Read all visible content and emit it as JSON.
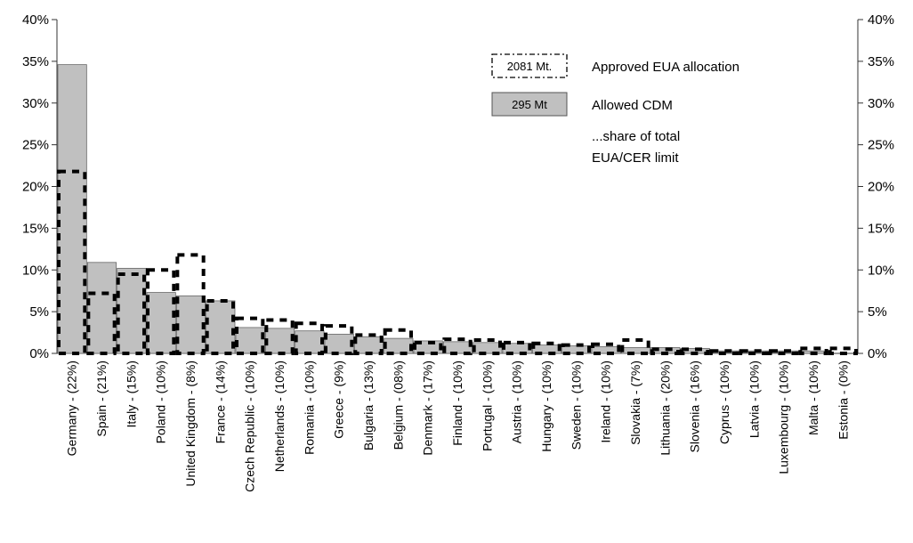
{
  "chart_data": {
    "type": "bar",
    "categories": [
      "Germany - (22%)",
      "Spain - (21%)",
      "Italy - (15%)",
      "Poland - (10%)",
      "United Kingdom - (8%)",
      "France - (14%)",
      "Czech Republic - (10%)",
      "Netherlands - (10%)",
      "Romania - (10%)",
      "Greece - (9%)",
      "Bulgaria - (13%)",
      "Belgium - (08%)",
      "Denmark - (17%)",
      "Finland - (10%)",
      "Portugal - (10%)",
      "Austria - (10%)",
      "Hungary - (10%)",
      "Sweden - (10%)",
      "Ireland - (10%)",
      "Slovakia - (7%)",
      "Lithuania - (20%)",
      "Slovenia - (16%)",
      "Cyprus - (10%)",
      "Latvia - (10%)",
      "Luxembourg - (10%)",
      "Malta - (10%)",
      "Estonia - (0%)"
    ],
    "series": [
      {
        "name": "Allowed CDM",
        "style": "filled",
        "color": "#c0c0c0",
        "values": [
          34.6,
          10.9,
          10.2,
          7.3,
          6.9,
          6.3,
          3.1,
          3.0,
          2.7,
          2.3,
          2.0,
          1.8,
          1.5,
          1.4,
          1.3,
          1.2,
          1.0,
          0.9,
          0.8,
          0.7,
          0.7,
          0.6,
          0.3,
          0.3,
          0.3,
          0.3,
          0.0
        ]
      },
      {
        "name": "Approved EUA allocation",
        "style": "dashed-outline",
        "color": "#000000",
        "values": [
          21.8,
          7.2,
          9.5,
          10.0,
          11.8,
          6.3,
          4.2,
          4.0,
          3.6,
          3.3,
          2.2,
          2.8,
          1.3,
          1.7,
          1.6,
          1.3,
          1.2,
          1.0,
          1.1,
          1.6,
          0.5,
          0.5,
          0.3,
          0.3,
          0.3,
          0.6,
          0.6
        ]
      }
    ],
    "ylim": [
      0,
      40
    ],
    "yticks": [
      "0%",
      "5%",
      "10%",
      "15%",
      "20%",
      "25%",
      "30%",
      "35%",
      "40%"
    ],
    "secondary_axis": true,
    "grid": false,
    "legend": {
      "placement": "top-right",
      "items": [
        {
          "box_text": "2081 Mt.",
          "label": "Approved EUA allocation"
        },
        {
          "box_text": "295 Mt",
          "label": "Allowed CDM"
        }
      ],
      "note_lines": [
        "...share of total",
        "EUA/CER limit"
      ]
    }
  }
}
